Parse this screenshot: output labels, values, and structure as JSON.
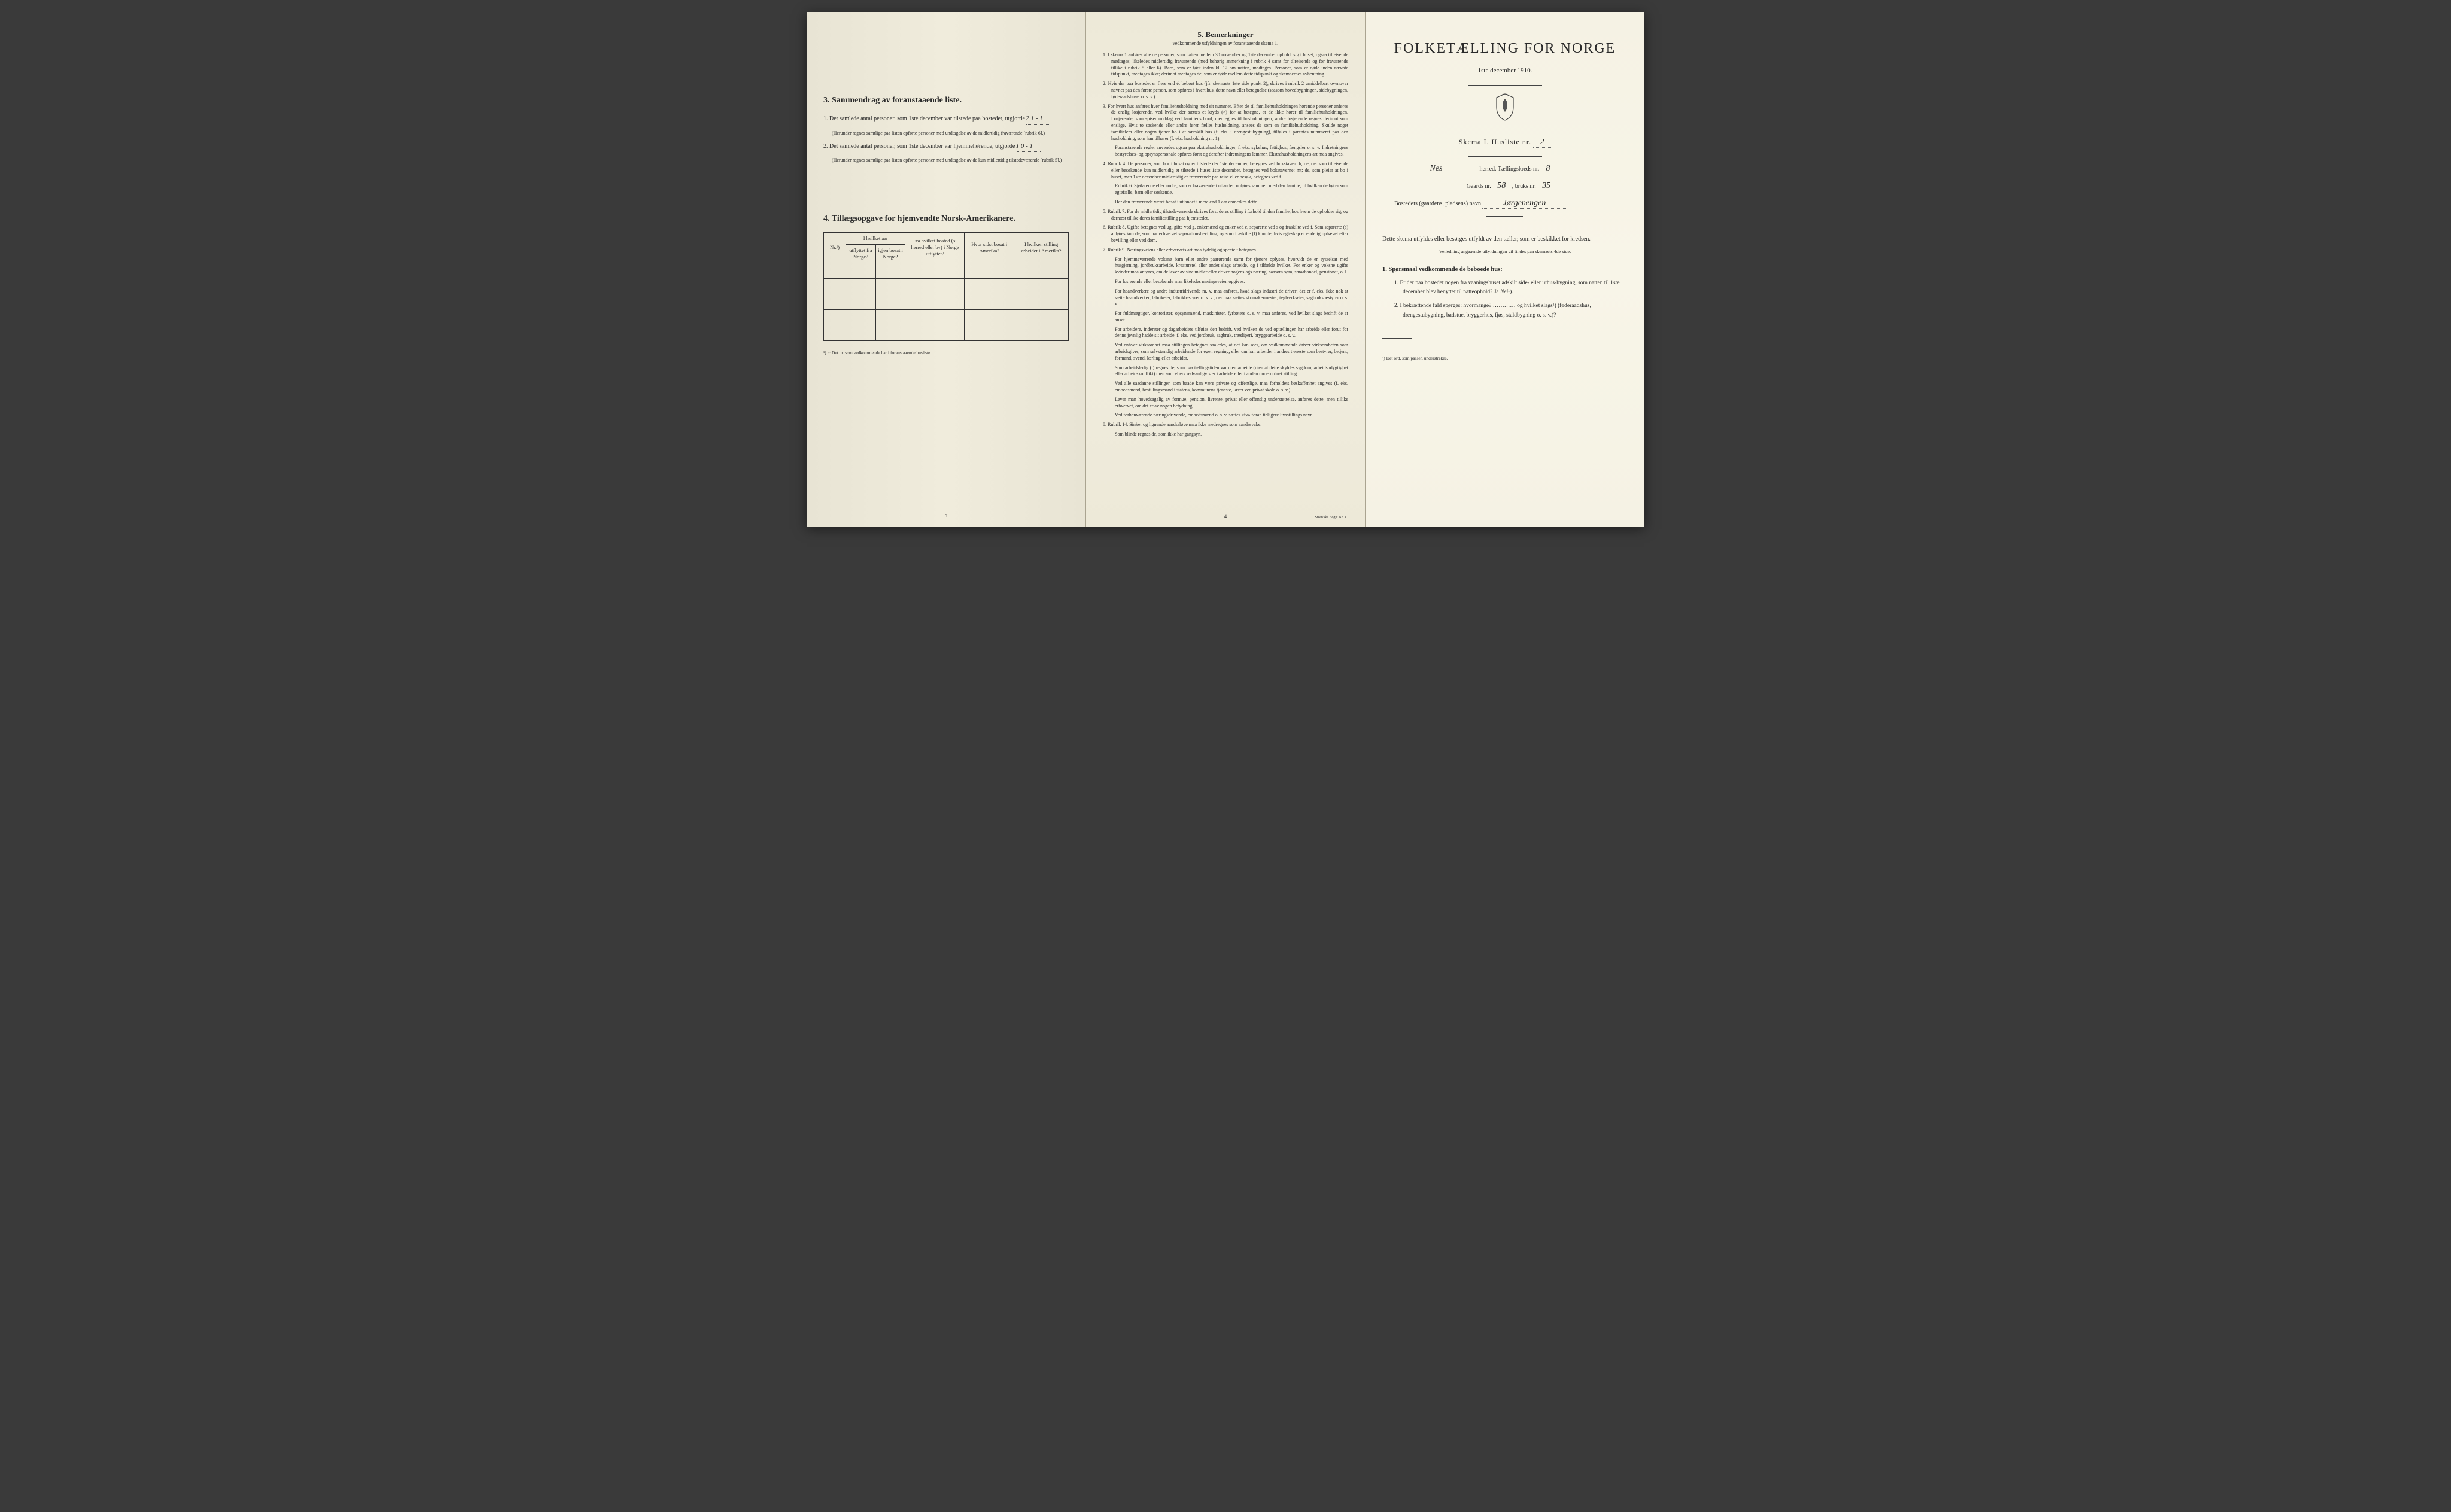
{
  "left": {
    "section3": {
      "num": "3.",
      "heading": "Sammendrag av foranstaaende liste.",
      "item1_pre": "1. Det samlede antal personer, som 1ste december var tilstede paa bostedet, utgjorde",
      "item1_fill": "2       1 - 1",
      "item1_note": "(Herunder regnes samtlige paa listen opførte personer med undtagelse av de midlertidig fraværende [rubrik 6].)",
      "item2_pre": "2. Det samlede antal personer, som 1ste december var hjemmehørende, utgjorde",
      "item2_fill": "1    0 - 1",
      "item2_note": "(Herunder regnes samtlige paa listen opførte personer med undtagelse av de kun midlertidig tilstedeværende [rubrik 5].)",
      "var_word": "var"
    },
    "section4": {
      "num": "4.",
      "heading": "Tillægsopgave for hjemvendte Norsk-Amerikanere.",
      "col_nr": "Nr.¹)",
      "col_utflyttet_head": "I hvilket aar",
      "col_utflyttet": "utflyttet fra Norge?",
      "col_igjen": "igjen bosat i Norge?",
      "col_bosted": "Fra hvilket bosted (ɔ: herred eller by) i Norge utflyttet?",
      "col_sidst": "Hvor sidst bosat i Amerika?",
      "col_stilling": "I hvilken stilling arbeidet i Amerika?",
      "footnote": "¹) ɔ: Det nr. som vedkommende har i foranstaaende husliste."
    },
    "page_num": "3"
  },
  "middle": {
    "title_num": "5.",
    "title": "Bemerkninger",
    "subtitle": "vedkommende utfyldningen av foranstaaende skema 1.",
    "items": [
      "1. I skema 1 anføres alle de personer, som natten mellem 30 november og 1ste december opholdt sig i huset; ogsaa tilreisende medtages; likeledes midlertidig fraværende (med behørig anmerkning i rubrik 4 samt for tilreisende og for fraværende tillike i rubrik 5 eller 6). Barn, som er født inden kl. 12 om natten, medtages. Personer, som er døde inden nævnte tidspunkt, medtages ikke; derimot medtages de, som er døde mellem dette tidspunkt og skemaernes avhentning.",
      "2. Hvis der paa bostedet er flere end ét beboet hus (jfr. skemaets 1ste side punkt 2), skrives i rubrik 2 umiddelbart ovenover navnet paa den første person, som opføres i hvert hus, dette navn eller betegnelse (saasom hovedbygningen, sidebygningen, føderaadshuset o. s. v.).",
      "3. For hvert hus anføres hver familiehusholdning med sit nummer. Efter de til familiehusholdningen hørende personer anføres de enslig losjerende, ved hvilke der sættes et kryds (×) for at betegne, at de ikke hører til familiehusholdningen. Losjerende, som spiser middag ved familiens bord, medregnes til husholdningen; andre losjerende regnes derimot som enslige. Hvis to søskende eller andre fører fælles husholdning, ansees de som en familiehusholdning. Skulde noget familielem eller nogen tjener bo i et særskilt hus (f. eks. i drengestubygning), tilføies i parentes nummeret paa den husholdning, som han tilhører (f. eks. husholdning nr. 1).",
      "Foranstaaende regler anvendes ogsaa paa ekstrahusholdninger, f. eks. sykehus, fattighus, fængsler o. s. v. Indretningens bestyrelses- og opsynspersonale opføres først og derefter indretningens lemmer. Ekstrahusholdningens art maa angives.",
      "4. Rubrik 4. De personer, som bor i huset og er tilstede der 1ste december, betegnes ved bokstaven: b; de, der som tilreisende eller besøkende kun midlertidig er tilstede i huset 1ste december, betegnes ved bokstaverne: mt; de, som pleier at bo i huset, men 1ste december midlertidig er fraværende paa reise eller besøk, betegnes ved f.",
      "Rubrik 6. Sjøfarende eller andre, som er fraværende i utlandet, opføres sammen med den familie, til hvilken de hører som egtefælle, barn eller søskende.",
      "Har den fraværende været bosat i utlandet i mere end 1 aar anmerkes dette.",
      "5. Rubrik 7. For de midlertidig tilstedeværende skrives først deres stilling i forhold til den familie, hos hvem de opholder sig, og dernæst tillike deres familiestilling paa hjemstedet.",
      "6. Rubrik 8. Ugifte betegnes ved ug, gifte ved g, enkemænd og enker ved e, separerte ved s og fraskilte ved f. Som separerte (s) anføres kun de, som har erhvervet separationsbevilling, og som fraskilte (f) kun de, hvis egteskap er endelig ophævet efter bevilling eller ved dom.",
      "7. Rubrik 9. Næringsveiens eller erhvervets art maa tydelig og specielt betegnes.",
      "For hjemmeværende voksne barn eller andre paarørende samt for tjenere oplyses, hvorvidt de er sysselsat med husgjerning, jordbruksarbeide, kreaturstel eller andet slags arbeide, og i tilfælde hvilket. For enker og voksne ugifte kvinder maa anføres, om de lever av sine midler eller driver nogenslags næring, saasom søm, smaahandel, pensionat, o. l.",
      "For losjerende eller besøkende maa likeledes næringsveien opgives.",
      "For haandverkere og andre industridrivende m. v. maa anføres, hvad slags industri de driver; det er f. eks. ikke nok at sætte haandverker, fabrikeier, fabrikbestyrer o. s. v.; der maa sættes skomakermester, teglverkseier, sagbruksbestyrer o. s. v.",
      "For fuldmægtiger, kontorister, opsynsmænd, maskinister, fyrbøtere o. s. v. maa anføres, ved hvilket slags bedrift de er ansat.",
      "For arbeidere, inderster og dagarbeidere tilføies den bedrift, ved hvilken de ved optællingen har arbeide eller forut for denne jevnlig hadde sit arbeide, f. eks. ved jordbruk, sagbruk, træsliperi, bryggearbeide o. s. v.",
      "Ved enhver virksomhet maa stillingen betegnes saaledes, at det kan sees, om vedkommende driver virksomheten som arbeidsgiver, som selvstændig arbeidende for egen regning, eller om han arbeider i andres tjeneste som bestyrer, betjent, formand, svend, lærling eller arbeider.",
      "Som arbeidsledig (l) regnes de, som paa tællingstiden var uten arbeide (uten at dette skyldes sygdom, arbeidsudygtighet eller arbeidskonflikt) men som ellers sedvanligvis er i arbeide eller i anden underordnet stilling.",
      "Ved alle saadanne stillinger, som baade kan være private og offentlige, maa forholdets beskaffenhet angives (f. eks. embedsmand, bestillingsmand i statens, kommunens tjeneste, lærer ved privat skole o. s. v.).",
      "Lever man hovedsagelig av formue, pension, livrente, privat eller offentlig understøttelse, anføres dette, men tillike erhvervet, om det er av nogen betydning.",
      "Ved forhenværende næringsdrivende, embedsmænd o. s. v. sættes «fv» foran tidligere livsstillings navn.",
      "8. Rubrik 14. Sinker og lignende aandssløve maa ikke medregnes som aandssvake.",
      "Som blinde regnes de, som ikke har gangsyn."
    ],
    "page_num": "4",
    "printer": "Steen'ske Bogtr.   Kr. a."
  },
  "right": {
    "title": "FOLKETÆLLING FOR NORGE",
    "date": "1ste december 1910.",
    "skema_label": "Skema I.  Husliste nr.",
    "skema_nr": "2",
    "herred_fill": "Nes",
    "herred_label": "herred.  Tællingskreds nr.",
    "kreds_nr": "8",
    "gaards_label": "Gaards nr.",
    "gaards_nr": "58",
    "bruks_label": ", bruks nr.",
    "bruks_nr": "35",
    "bosted_label": "Bostedets (gaardens, pladsens) navn",
    "bosted_fill": "Jørgenengen",
    "intro": "Dette skema utfyldes eller besørges utfyldt av den tæller, som er beskikket for kredsen.",
    "veiledning": "Veiledning angaaende utfyldningen vil findes paa skemaets 4de side.",
    "sporsmaal_head": "1. Spørsmaal vedkommende de beboede hus:",
    "q1": "1. Er der paa bostedet nogen fra vaaningshuset adskilt side- eller uthus-bygning, som natten til 1ste december blev benyttet til natteophold?   Ja   Nei¹).",
    "q2": "2. I bekræftende fald spørges: hvormange? ………… og hvilket slags¹) (føderaadshus, drengestubygning, badstue, bryggerhus, fjøs, staldbygning o. s. v.)?",
    "footnote": "¹) Det ord, som passer, understrekes.",
    "nei_underline": "Nei"
  },
  "colors": {
    "paper_left": "#ede9d8",
    "paper_right": "#f6f3e5",
    "text": "#2a2a2a",
    "border": "#333333"
  }
}
